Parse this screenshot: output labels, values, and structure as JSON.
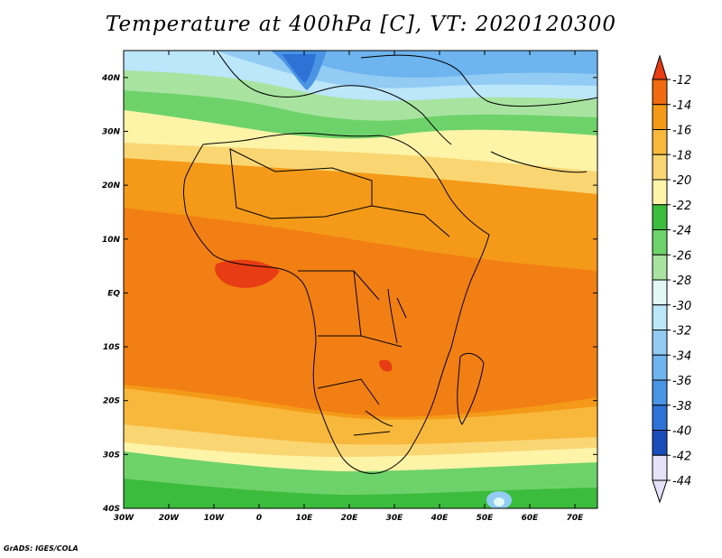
{
  "title": "Temperature at 400hPa [C], VT: 2020120300",
  "credit": "GrADS: IGES/COLA",
  "map": {
    "lat_ticks": [
      "40N",
      "30N",
      "20N",
      "10N",
      "EQ",
      "10S",
      "20S",
      "30S",
      "40S"
    ],
    "lon_ticks": [
      "30W",
      "20W",
      "10W",
      "0",
      "10E",
      "20E",
      "30E",
      "40E",
      "50E",
      "60E",
      "70E"
    ],
    "lon_range": [
      -30,
      75
    ],
    "lat_range": [
      -40,
      45
    ]
  },
  "colorbar": {
    "levels": [
      "-12",
      "-14",
      "-16",
      "-18",
      "-20",
      "-22",
      "-24",
      "-26",
      "-28",
      "-30",
      "-32",
      "-34",
      "-36",
      "-38",
      "-40",
      "-42",
      "-44"
    ],
    "colors": {
      "above_-12": "#e83c14",
      "-12_-14": "#f06a10",
      "-14_-16": "#f49a18",
      "-16_-18": "#f8b83c",
      "-18_-20": "#fad672",
      "-20_-22": "#fef4a8",
      "-22_-24": "#3cbc3c",
      "-24_-26": "#6ed26a",
      "-26_-28": "#a8e4a0",
      "-28_-30": "#e2f8f4",
      "-30_-32": "#bce6fa",
      "-32_-34": "#92ccf4",
      "-34_-36": "#6eb4ee",
      "-36_-38": "#4a94e4",
      "-38_-40": "#2e72d6",
      "-40_-42": "#1a4cbc",
      "below_-44": "#e6e2fa"
    }
  }
}
